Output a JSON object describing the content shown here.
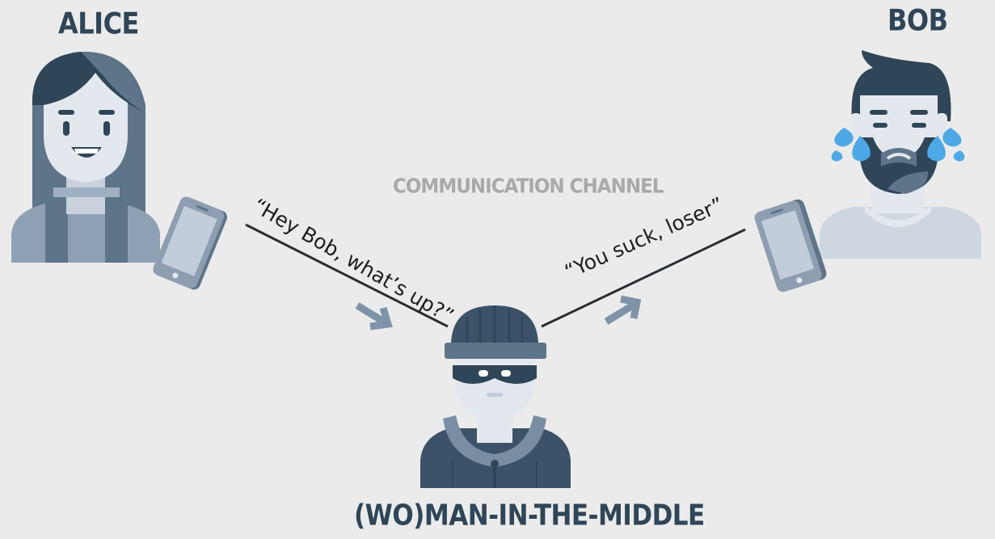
{
  "labels": {
    "alice": "ALICE",
    "bob": "BOB",
    "channel": "COMMUNICATION CHANNEL",
    "attacker": "(WO)MAN-IN-THE-MIDDLE"
  },
  "messages": {
    "alice_sent": "“Hey Bob, what’s up?”",
    "bob_received": "“You suck, loser”"
  },
  "colors": {
    "background": "#ebebeb",
    "dark_slate": "#2f4558",
    "mid_slate": "#5e7489",
    "light_skin": "#e3e8ee",
    "phone_body": "#8e9db0",
    "phone_screen": "#c2cdd9",
    "arrow": "#7f93a8",
    "tears": "#4ea8e6",
    "channel_text": "#a9a9a9"
  },
  "icons": [
    "alice-avatar",
    "bob-crying-avatar",
    "hacker-avatar",
    "phone-icon",
    "arrow-icon"
  ]
}
